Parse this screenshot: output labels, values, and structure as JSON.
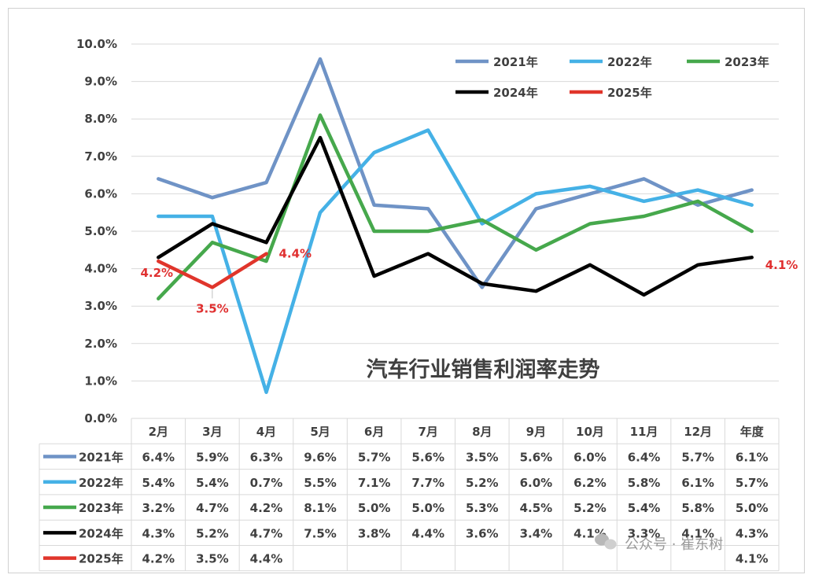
{
  "chart_data": {
    "type": "line",
    "title": "汽车行业销售利润率走势",
    "categories": [
      "2月",
      "3月",
      "4月",
      "5月",
      "6月",
      "7月",
      "8月",
      "9月",
      "10月",
      "11月",
      "12月",
      "年度"
    ],
    "y_ticks": [
      "0.0%",
      "1.0%",
      "2.0%",
      "3.0%",
      "4.0%",
      "5.0%",
      "6.0%",
      "7.0%",
      "8.0%",
      "9.0%",
      "10.0%"
    ],
    "ylim": [
      0,
      10
    ],
    "grid": true,
    "legend_position": "top-right",
    "series": [
      {
        "name": "2021年",
        "color": "#6f93c6",
        "values": [
          6.4,
          5.9,
          6.3,
          9.6,
          5.7,
          5.6,
          3.5,
          5.6,
          6.0,
          6.4,
          5.7,
          6.1
        ],
        "labels": [
          "6.4%",
          "5.9%",
          "6.3%",
          "9.6%",
          "5.7%",
          "5.6%",
          "3.5%",
          "5.6%",
          "6.0%",
          "6.4%",
          "5.7%",
          "6.1%"
        ]
      },
      {
        "name": "2022年",
        "color": "#45b1e6",
        "values": [
          5.4,
          5.4,
          0.7,
          5.5,
          7.1,
          7.7,
          5.2,
          6.0,
          6.2,
          5.8,
          6.1,
          5.7
        ],
        "labels": [
          "5.4%",
          "5.4%",
          "0.7%",
          "5.5%",
          "7.1%",
          "7.7%",
          "5.2%",
          "6.0%",
          "6.2%",
          "5.8%",
          "6.1%",
          "5.7%"
        ]
      },
      {
        "name": "2023年",
        "color": "#46a84c",
        "values": [
          3.2,
          4.7,
          4.2,
          8.1,
          5.0,
          5.0,
          5.3,
          4.5,
          5.2,
          5.4,
          5.8,
          5.0
        ],
        "labels": [
          "3.2%",
          "4.7%",
          "4.2%",
          "8.1%",
          "5.0%",
          "5.0%",
          "5.3%",
          "4.5%",
          "5.2%",
          "5.4%",
          "5.8%",
          "5.0%"
        ]
      },
      {
        "name": "2024年",
        "color": "#000000",
        "values": [
          4.3,
          5.2,
          4.7,
          7.5,
          3.8,
          4.4,
          3.6,
          3.4,
          4.1,
          3.3,
          4.1,
          4.3
        ],
        "labels": [
          "4.3%",
          "5.2%",
          "4.7%",
          "7.5%",
          "3.8%",
          "4.4%",
          "3.6%",
          "3.4%",
          "4.1%",
          "3.3%",
          "4.1%",
          "4.3%"
        ]
      },
      {
        "name": "2025年",
        "color": "#e0352b",
        "values": [
          4.2,
          3.5,
          4.4,
          null,
          null,
          null,
          null,
          null,
          null,
          null,
          null,
          4.1
        ],
        "labels": [
          "4.2%",
          "3.5%",
          "4.4%",
          "",
          "",
          "",
          "",
          "",
          "",
          "",
          "",
          "4.1%"
        ]
      }
    ],
    "annotations": [
      "4.2%",
      "3.5%",
      "4.4%",
      "4.1%"
    ]
  },
  "watermark": "公众号 · 崔东树"
}
